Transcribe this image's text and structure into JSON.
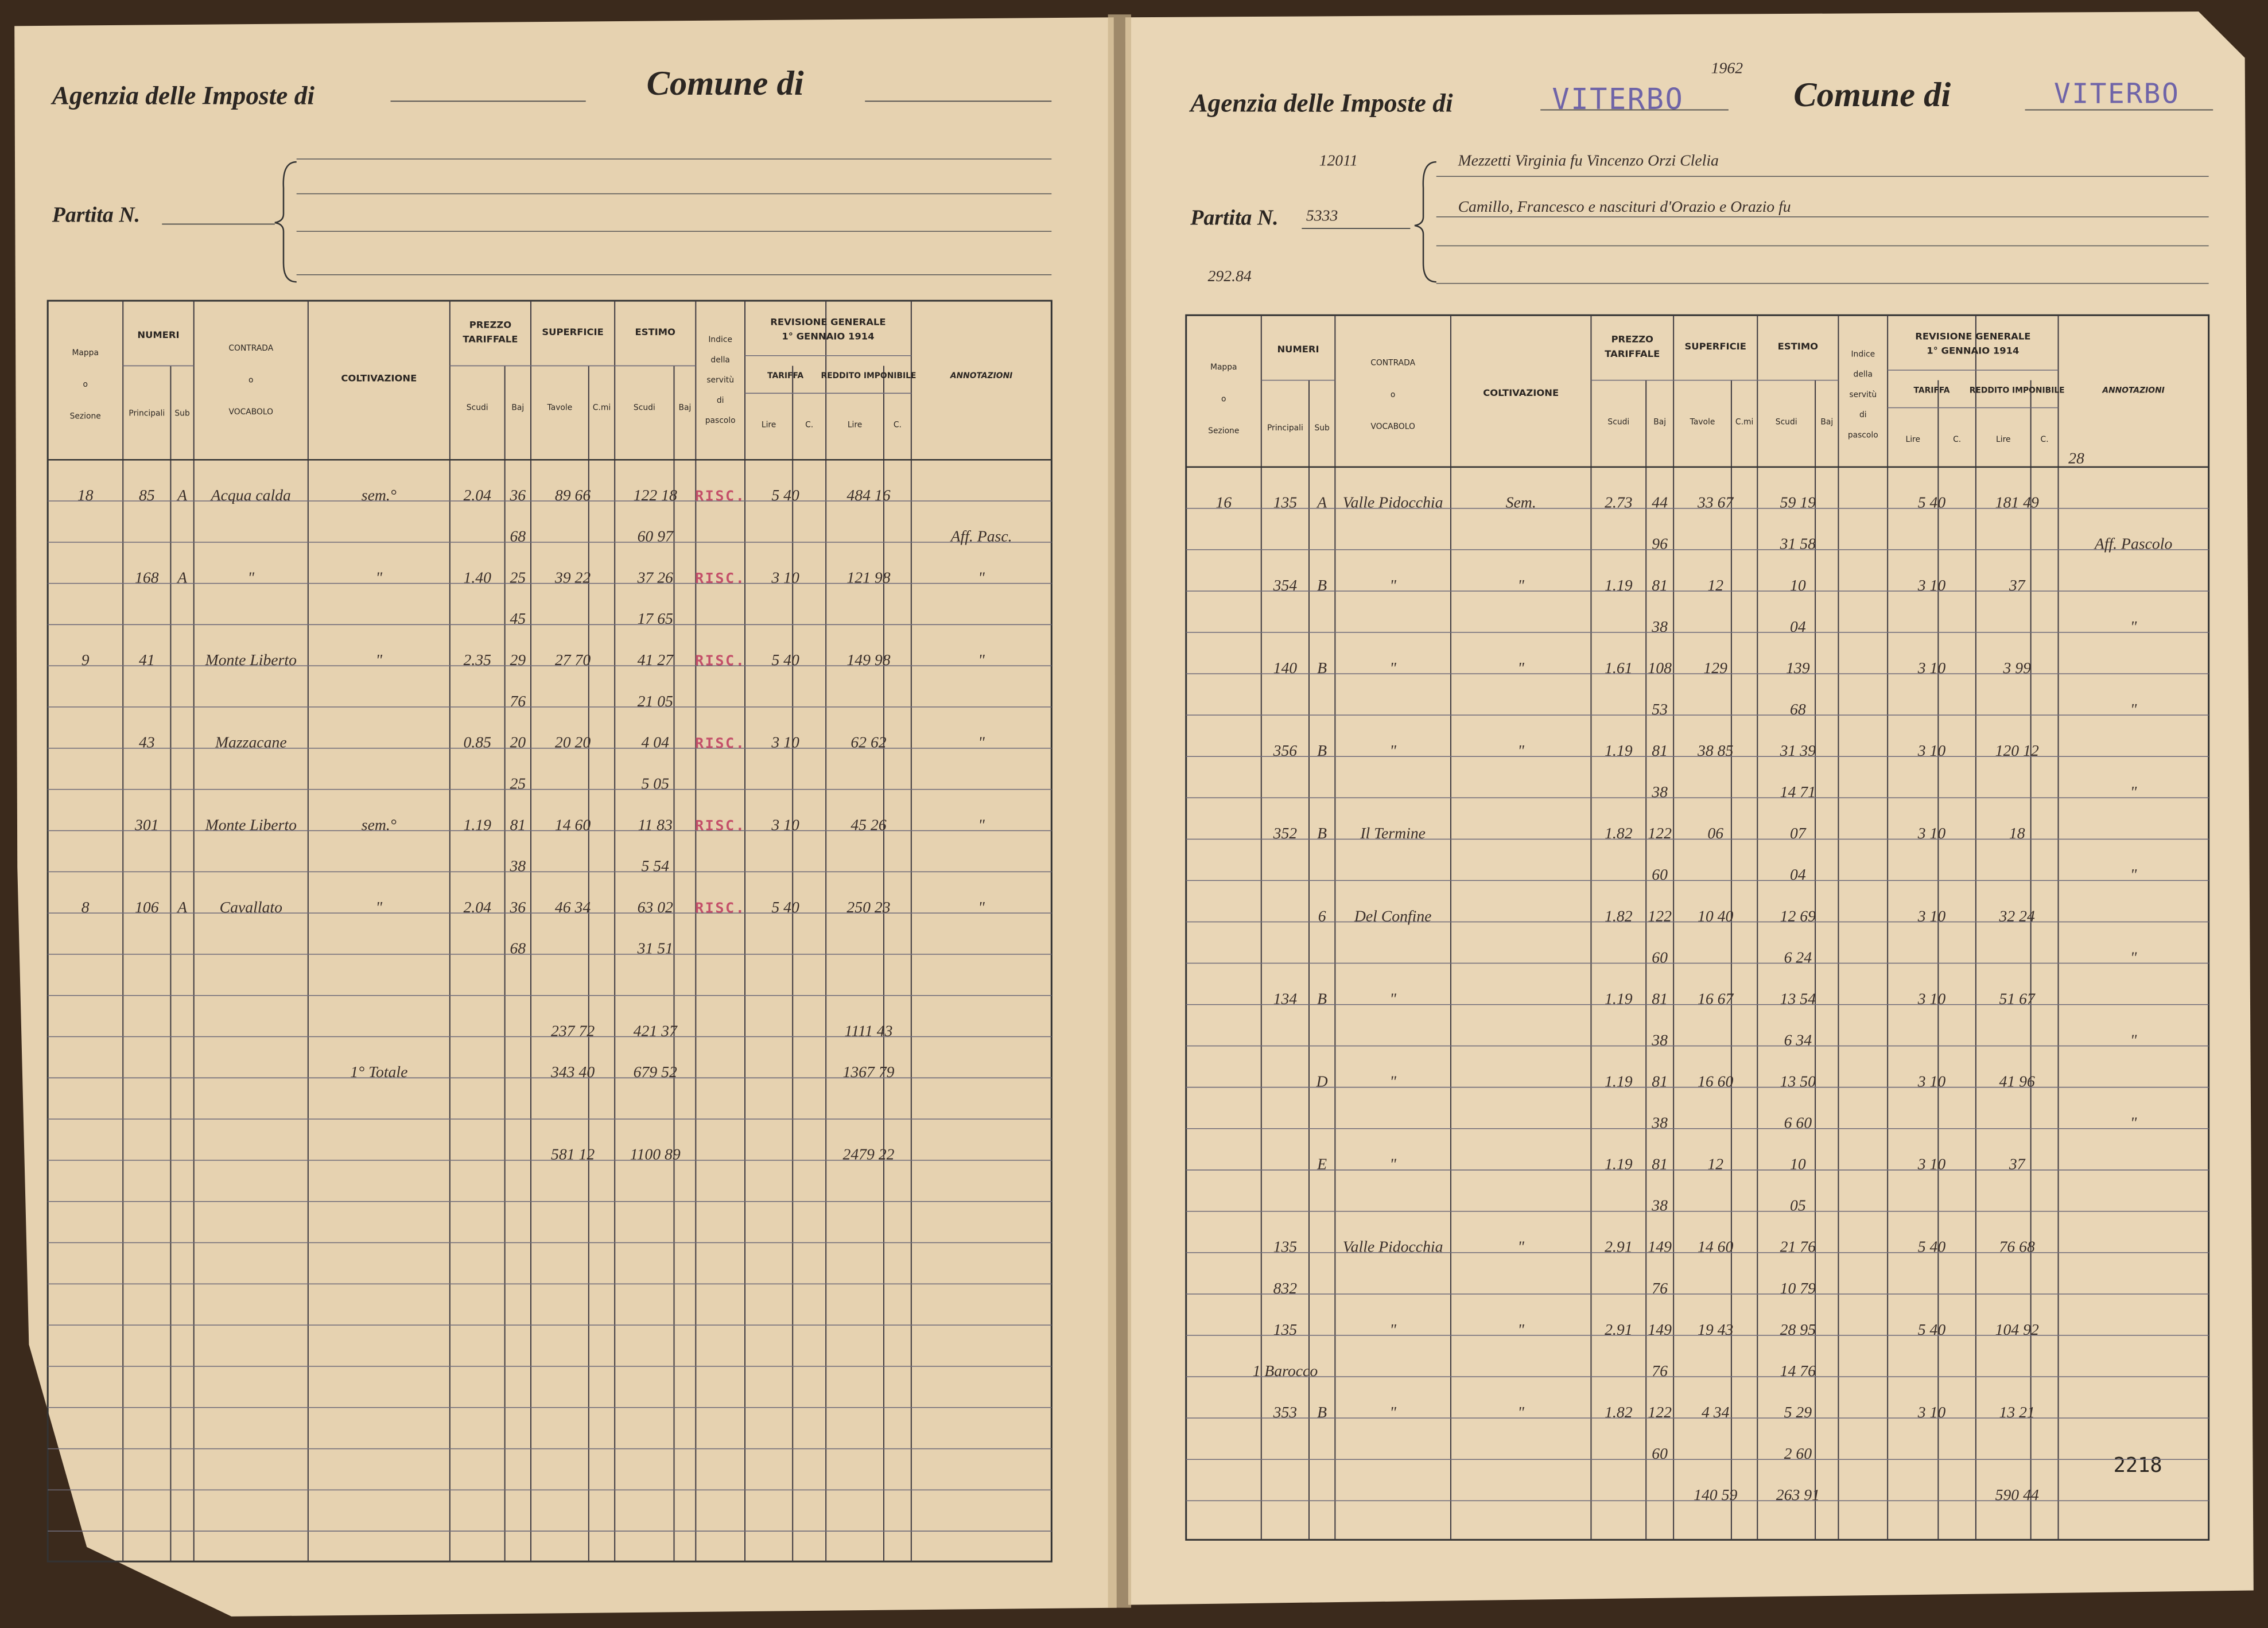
{
  "headers": {
    "mappa": [
      "Mappa",
      "o",
      "Sezione"
    ],
    "numeri": "NUMERI",
    "principali": "Principali",
    "sub": "Sub",
    "contrada": [
      "CONTRADA",
      "o",
      "VOCABOLO"
    ],
    "coltivazione": "COLTIVAZIONE",
    "prezzo": [
      "PREZZO",
      "TARIFFALE"
    ],
    "scudi": "Scudi",
    "baj": "Baj",
    "superficie": "SUPERFICIE",
    "tavole": "Tavole",
    "cmi": "C.mi",
    "estimo": "ESTIMO",
    "indice": [
      "Indice",
      "della",
      "servitù",
      "di",
      "pascolo"
    ],
    "revisione": [
      "REVISIONE GENERALE",
      "1° GENNAIO 1914"
    ],
    "tariffa": "TARIFFA",
    "reddito": "REDDITO IMPONIBILE",
    "lire": "Lire",
    "c": "C.",
    "annotazioni": "ANNOTAZIONI"
  },
  "left_page": {
    "agency_label": "Agenzia delle Imposte di",
    "comune_label": "Comune di",
    "partita_label": "Partita N.",
    "records": [
      {
        "main": {
          "sezione": "18",
          "principali": "85",
          "sub": "A",
          "contrada": "Acqua calda",
          "coltivazione": "sem.°",
          "prezzo_scudi": "2.04",
          "prezzo_baj": "36",
          "superficie": "89 66",
          "estimo": "122 18",
          "indice": "RISC.",
          "tariffa": "5 40",
          "reddito": "484 16"
        },
        "second": {
          "prezzo_baj": "68",
          "estimo": "60 97",
          "annotazioni": "Aff. Pasc."
        }
      },
      {
        "main": {
          "principali": "168",
          "sub": "A",
          "contrada": "\"",
          "coltivazione": "\"",
          "prezzo_scudi": "1.40",
          "prezzo_baj": "25",
          "superficie": "39 22",
          "estimo": "37 26",
          "indice": "RISC.",
          "tariffa": "3 10",
          "reddito": "121 98",
          "annotazioni": "\""
        },
        "second": {
          "prezzo_baj": "45",
          "estimo": "17 65"
        }
      },
      {
        "main": {
          "sezione": "9",
          "principali": "41",
          "contrada": "Monte Liberto",
          "coltivazione": "\"",
          "prezzo_scudi": "2.35",
          "prezzo_baj": "29",
          "superficie": "27 70",
          "estimo": "41 27",
          "indice": "RISC.",
          "tariffa": "5 40",
          "reddito": "149 98",
          "annotazioni": "\""
        },
        "second": {
          "prezzo_baj": "76",
          "estimo": "21 05"
        }
      },
      {
        "main": {
          "principali": "43",
          "contrada": "Mazzacane",
          "prezzo_scudi": "0.85",
          "prezzo_baj": "20",
          "superficie": "20 20",
          "estimo": "4 04",
          "indice": "RISC.",
          "tariffa": "3 10",
          "reddito": "62 62",
          "annotazioni": "\""
        },
        "second": {
          "prezzo_baj": "25",
          "estimo": "5 05"
        }
      },
      {
        "main": {
          "principali": "301",
          "contrada": "Monte Liberto",
          "coltivazione": "sem.°",
          "prezzo_scudi": "1.19",
          "prezzo_baj": "81",
          "superficie": "14 60",
          "estimo": "11 83",
          "indice": "RISC.",
          "tariffa": "3 10",
          "reddito": "45 26",
          "annotazioni": "\""
        },
        "second": {
          "prezzo_baj": "38",
          "estimo": "5 54"
        }
      },
      {
        "main": {
          "sezione": "8",
          "principali": "106",
          "sub": "A",
          "contrada": "Cavallato",
          "coltivazione": "\"",
          "prezzo_scudi": "2.04",
          "prezzo_baj": "36",
          "superficie": "46 34",
          "estimo": "63 02",
          "indice": "RISC.",
          "tariffa": "5 40",
          "reddito": "250 23",
          "annotazioni": "\""
        },
        "second": {
          "prezzo_baj": "68",
          "estimo": "31 51"
        }
      }
    ],
    "totals": [
      {
        "superficie": "237 72",
        "estimo": "421 37",
        "reddito": "1111 43"
      },
      {
        "coltivazione": "1° Totale",
        "superficie": "343 40",
        "estimo": "679 52",
        "reddito": "1367 79"
      },
      {
        "superficie": "581 12",
        "estimo": "1100 89",
        "reddito": "2479 22"
      }
    ]
  },
  "right_page": {
    "agency_label": "Agenzia delle Imposte di",
    "agency_value": "VITERBO",
    "year": "1962",
    "comune_label": "Comune di",
    "comune_value": "VITERBO",
    "ref_number": "12011",
    "owner_line1": "Mezzetti Virginia fu Vincenzo Orzi Clelia",
    "owner_line2": "Camillo, Francesco e nascituri d'Orazio e Orazio fu",
    "partita_label": "Partita N.",
    "partita_number": "5333",
    "pencil_note": "292.84",
    "corner_note": "28",
    "page_number": "2218",
    "records": [
      {
        "main": {
          "sezione": "16",
          "principali": "135",
          "sub": "A",
          "contrada": "Valle Pidocchia",
          "coltivazione": "Sem.",
          "prezzo_scudi": "2.73",
          "prezzo_baj": "44",
          "superficie": "33 67",
          "estimo": "59 19",
          "tariffa": "5 40",
          "reddito": "181 49"
        },
        "second": {
          "prezzo_baj": "96",
          "estimo": "31 58",
          "annotazioni": "Aff. Pascolo"
        }
      },
      {
        "main": {
          "principali": "354",
          "sub": "B",
          "contrada": "\"",
          "coltivazione": "\"",
          "prezzo_scudi": "1.19",
          "prezzo_baj": "81",
          "superficie": "12",
          "estimo": "10",
          "tariffa": "3 10",
          "reddito": "37"
        },
        "second": {
          "prezzo_baj": "38",
          "estimo": "04",
          "annotazioni": "\""
        }
      },
      {
        "main": {
          "principali": "140",
          "sub": "B",
          "contrada": "\"",
          "coltivazione": "\"",
          "prezzo_scudi": "1.61",
          "prezzo_baj": "108",
          "superficie": "129",
          "estimo": "139",
          "tariffa": "3 10",
          "reddito": "3 99"
        },
        "second": {
          "prezzo_baj": "53",
          "estimo": "68",
          "annotazioni": "\""
        }
      },
      {
        "main": {
          "principali": "356",
          "sub": "B",
          "contrada": "\"",
          "coltivazione": "\"",
          "prezzo_scudi": "1.19",
          "prezzo_baj": "81",
          "superficie": "38 85",
          "estimo": "31 39",
          "tariffa": "3 10",
          "reddito": "120 12"
        },
        "second": {
          "prezzo_baj": "38",
          "estimo": "14 71",
          "annotazioni": "\""
        }
      },
      {
        "main": {
          "principali": "352",
          "sub": "B",
          "contrada": "Il Termine",
          "prezzo_scudi": "1.82",
          "prezzo_baj": "122",
          "superficie": "06",
          "estimo": "07",
          "tariffa": "3 10",
          "reddito": "18"
        },
        "second": {
          "prezzo_baj": "60",
          "estimo": "04",
          "annotazioni": "\""
        }
      },
      {
        "main": {
          "sub": "6",
          "contrada": "Del Confine",
          "prezzo_scudi": "1.82",
          "prezzo_baj": "122",
          "superficie": "10 40",
          "estimo": "12 69",
          "tariffa": "3 10",
          "reddito": "32 24"
        },
        "second": {
          "prezzo_baj": "60",
          "estimo": "6 24",
          "annotazioni": "\""
        }
      },
      {
        "main": {
          "principali": "134",
          "sub": "B",
          "contrada": "\"",
          "prezzo_scudi": "1.19",
          "prezzo_baj": "81",
          "superficie": "16 67",
          "estimo": "13 54",
          "tariffa": "3 10",
          "reddito": "51 67"
        },
        "second": {
          "prezzo_baj": "38",
          "estimo": "6 34",
          "annotazioni": "\""
        }
      },
      {
        "main": {
          "sub": "D",
          "contrada": "\"",
          "prezzo_scudi": "1.19",
          "prezzo_baj": "81",
          "superficie": "16 60",
          "estimo": "13 50",
          "tariffa": "3 10",
          "reddito": "41 96"
        },
        "second": {
          "prezzo_baj": "38",
          "estimo": "6 60",
          "annotazioni": "\""
        }
      },
      {
        "main": {
          "sub": "E",
          "contrada": "\"",
          "prezzo_scudi": "1.19",
          "prezzo_baj": "81",
          "superficie": "12",
          "estimo": "10",
          "tariffa": "3 10",
          "reddito": "37"
        },
        "second": {
          "prezzo_baj": "38",
          "estimo": "05"
        }
      },
      {
        "main": {
          "principali": "135",
          "contrada": "Valle Pidocchia",
          "coltivazione": "\"",
          "prezzo_scudi": "2.91",
          "prezzo_baj": "149",
          "superficie": "14 60",
          "estimo": "21 76",
          "tariffa": "5 40",
          "reddito": "76 68"
        },
        "second": {
          "principali": "832",
          "prezzo_baj": "76",
          "estimo": "10 79"
        }
      },
      {
        "main": {
          "principali": "135",
          "contrada": "\"",
          "coltivazione": "\"",
          "prezzo_scudi": "2.91",
          "prezzo_baj": "149",
          "superficie": "19 43",
          "estimo": "28 95",
          "tariffa": "5 40",
          "reddito": "104 92"
        },
        "second": {
          "principali": "1 Barocco",
          "prezzo_baj": "76",
          "estimo": "14 76"
        }
      },
      {
        "main": {
          "principali": "353",
          "sub": "B",
          "contrada": "\"",
          "coltivazione": "\"",
          "prezzo_scudi": "1.82",
          "prezzo_baj": "122",
          "superficie": "4 34",
          "estimo": "5 29",
          "tariffa": "3 10",
          "reddito": "13 21"
        },
        "second": {
          "prezzo_baj": "60",
          "estimo": "2 60"
        }
      }
    ],
    "totals": [
      {
        "superficie": "140 59",
        "estimo": "263 91",
        "reddito": "590 44"
      }
    ]
  }
}
